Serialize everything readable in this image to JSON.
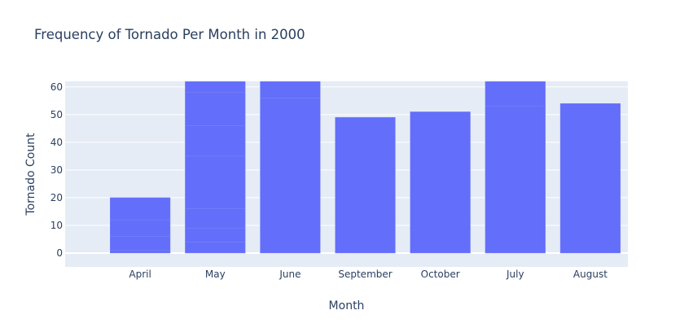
{
  "chart_data": {
    "type": "bar",
    "title": "Frequency of Tornado Per Month in 2000",
    "xlabel": "Month",
    "ylabel": "Tornado Count",
    "categories": [
      "April",
      "May",
      "June",
      "September",
      "October",
      "July",
      "August"
    ],
    "series": [
      {
        "segments": [
          [
            1,
            5,
            6,
            8
          ],
          [
            4,
            5,
            7,
            19,
            11,
            12,
            4
          ],
          [
            56,
            6
          ],
          [
            49
          ],
          [
            51
          ],
          [
            53,
            9
          ],
          [
            54
          ]
        ],
        "values": [
          20,
          62,
          62,
          49,
          51,
          62,
          54
        ]
      }
    ],
    "ylim": [
      -5,
      62
    ],
    "yticks": [
      0,
      10,
      20,
      30,
      40,
      50,
      60
    ],
    "xlim": [
      -1,
      6.5
    ],
    "grid": true,
    "colors": {
      "bar": "#636efa",
      "plot_bg": "#e5ecf6",
      "grid": "#ffffff",
      "text": "#2a3f5f",
      "tick_text": "#2a3f5f"
    }
  }
}
